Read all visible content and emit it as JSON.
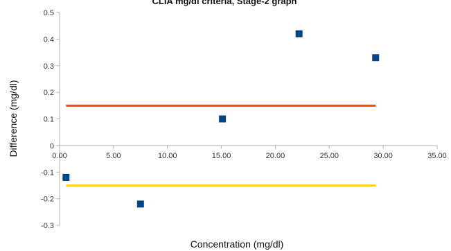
{
  "chart_data": {
    "type": "scatter",
    "title": "CLIA mg/dl criteria, Stage-2 graph",
    "xlabel": "Concentration (mg/dl)",
    "ylabel": "Difference (mg/dl)",
    "xlim": [
      0,
      35
    ],
    "ylim": [
      -0.3,
      0.5
    ],
    "x_ticks": [
      "0.00",
      "5.00",
      "10.00",
      "15.00",
      "20.00",
      "25.00",
      "30.00",
      "35.00"
    ],
    "y_ticks": [
      "-0.3",
      "-0.2",
      "-0.1",
      "0",
      "0.1",
      "0.2",
      "0.3",
      "0.4",
      "0.5"
    ],
    "x_tick_values": [
      0,
      5,
      10,
      15,
      20,
      25,
      30,
      35
    ],
    "y_tick_values": [
      -0.3,
      -0.2,
      -0.1,
      0,
      0.1,
      0.2,
      0.3,
      0.4,
      0.5
    ],
    "grid": false,
    "legend": "none",
    "series": [
      {
        "kind": "points",
        "color": "#004586",
        "marker": "square",
        "points": [
          {
            "x": 0.6,
            "y": -0.12
          },
          {
            "x": 7.5,
            "y": -0.22
          },
          {
            "x": 15.1,
            "y": 0.1
          },
          {
            "x": 22.2,
            "y": 0.42
          },
          {
            "x": 29.3,
            "y": 0.33
          }
        ]
      },
      {
        "kind": "line",
        "color": "#ff420e",
        "points": [
          {
            "x": 0.6,
            "y": 0.15
          },
          {
            "x": 29.3,
            "y": 0.15
          }
        ]
      },
      {
        "kind": "line",
        "color": "#ffd320",
        "points": [
          {
            "x": 0.6,
            "y": -0.15
          },
          {
            "x": 29.3,
            "y": -0.15
          }
        ]
      }
    ]
  }
}
